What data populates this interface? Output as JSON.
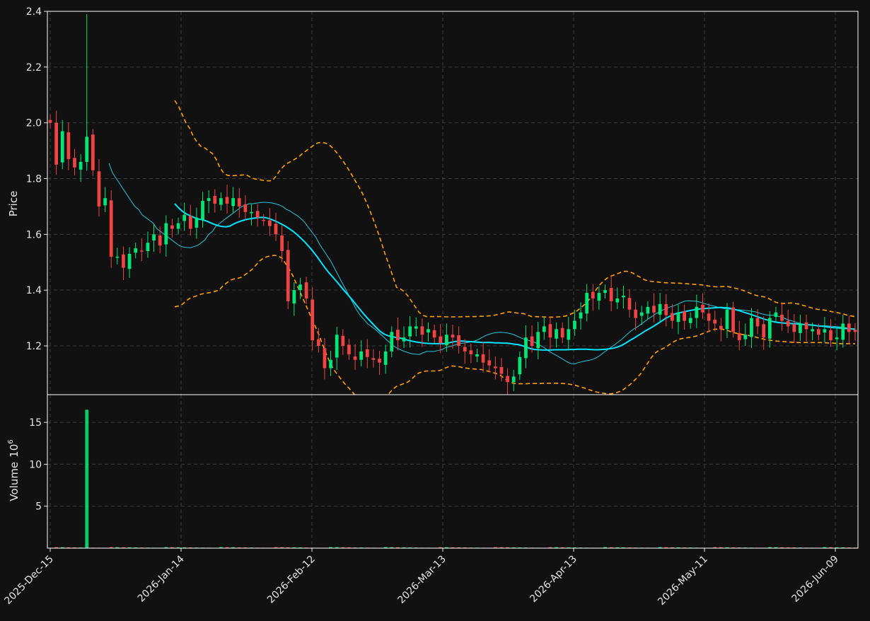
{
  "chart_data": {
    "type": "candlestick",
    "price_axis": {
      "ylabel": "Price",
      "ylim": [
        1.025,
        2.4
      ],
      "ticks": [
        "1.2",
        "1.4",
        "1.6",
        "1.8",
        "2.0",
        "2.2",
        "2.4"
      ]
    },
    "volume_axis": {
      "ylabel": "Volume",
      "exponent": "6",
      "ylim": [
        0,
        18.3
      ],
      "ticks": [
        "5",
        "10",
        "15"
      ]
    },
    "x_axis": {
      "ticks": [
        "2025-Dec-15",
        "2026-Jan-14",
        "2026-Feb-12",
        "2026-Mar-13",
        "2026-Apr-13",
        "2026-May-11",
        "2026-Jun-09"
      ]
    },
    "grid": true,
    "colors": {
      "background": "#111111",
      "up": "#00e676",
      "down": "#ef4444",
      "ma_thin": "#26c6da",
      "ma_thick": "#00e5ff",
      "bands": "#ffa000",
      "grid": "#3a3a3a",
      "axis": "#ffffff"
    },
    "candle_closes": [
      2.0,
      1.85,
      1.97,
      1.87,
      1.84,
      1.86,
      1.95,
      1.83,
      1.7,
      1.73,
      1.52,
      1.52,
      1.48,
      1.53,
      1.55,
      1.54,
      1.57,
      1.6,
      1.56,
      1.64,
      1.62,
      1.64,
      1.67,
      1.62,
      1.66,
      1.72,
      1.73,
      1.71,
      1.73,
      1.71,
      1.73,
      1.7,
      1.68,
      1.68,
      1.66,
      1.65,
      1.63,
      1.6,
      1.54,
      1.36,
      1.4,
      1.42,
      1.37,
      1.22,
      1.2,
      1.12,
      1.15,
      1.24,
      1.2,
      1.17,
      1.15,
      1.18,
      1.16,
      1.15,
      1.14,
      1.18,
      1.25,
      1.22,
      1.23,
      1.27,
      1.27,
      1.24,
      1.26,
      1.23,
      1.21,
      1.24,
      1.23,
      1.2,
      1.18,
      1.17,
      1.17,
      1.14,
      1.13,
      1.12,
      1.1,
      1.07,
      1.09,
      1.16,
      1.23,
      1.2,
      1.25,
      1.27,
      1.23,
      1.26,
      1.23,
      1.26,
      1.29,
      1.32,
      1.39,
      1.37,
      1.39,
      1.4,
      1.36,
      1.37,
      1.38,
      1.33,
      1.3,
      1.32,
      1.34,
      1.32,
      1.35,
      1.31,
      1.29,
      1.32,
      1.29,
      1.3,
      1.34,
      1.32,
      1.29,
      1.28,
      1.26,
      1.33,
      1.25,
      1.22,
      1.24,
      1.3,
      1.27,
      1.23,
      1.3,
      1.32,
      1.29,
      1.27,
      1.25,
      1.28,
      1.26,
      1.26,
      1.24,
      1.26,
      1.22,
      1.23,
      1.28,
      1.25,
      1.25
    ],
    "ma_thin_20": [
      1.855,
      1.82,
      1.8,
      1.78,
      1.76,
      1.74,
      1.72,
      1.7,
      1.69,
      1.67,
      1.66,
      1.65,
      1.64,
      1.62,
      1.61,
      1.6,
      1.59,
      1.58,
      1.57,
      1.56,
      1.555,
      1.553,
      1.552,
      1.556,
      1.56,
      1.57,
      1.58,
      1.6,
      1.61,
      1.63,
      1.64,
      1.65,
      1.66,
      1.67,
      1.68,
      1.69,
      1.7,
      1.705,
      1.71,
      1.71,
      1.712,
      1.714,
      1.715,
      1.714,
      1.713,
      1.71,
      1.706,
      1.7,
      1.69,
      1.684,
      1.675,
      1.667,
      1.656,
      1.643,
      1.625,
      1.607,
      1.59,
      1.565,
      1.545,
      1.525,
      1.505,
      1.48,
      1.455,
      1.43,
      1.405,
      1.38,
      1.355,
      1.33,
      1.31,
      1.295,
      1.28,
      1.27,
      1.26,
      1.248,
      1.236,
      1.224,
      1.212,
      1.2,
      1.192,
      1.186,
      1.18,
      1.176,
      1.172,
      1.17,
      1.169,
      1.175,
      1.18,
      1.18,
      1.18,
      1.183,
      1.186,
      1.193,
      1.197,
      1.2,
      1.205,
      1.209,
      1.21,
      1.212,
      1.214,
      1.217,
      1.223,
      1.23,
      1.237,
      1.242,
      1.246,
      1.248,
      1.249,
      1.248,
      1.246,
      1.243,
      1.238,
      1.232,
      1.226,
      1.222,
      1.218,
      1.214,
      1.208,
      1.2,
      1.192,
      1.182,
      1.174,
      1.167,
      1.159,
      1.151,
      1.143,
      1.137,
      1.135,
      1.14,
      1.143,
      1.146,
      1.148,
      1.152,
      1.158,
      1.166,
      1.177,
      1.186,
      1.196,
      1.205,
      1.215,
      1.226,
      1.238,
      1.25,
      1.26,
      1.268,
      1.277,
      1.287,
      1.297,
      1.305,
      1.315,
      1.322,
      1.329,
      1.335,
      1.34,
      1.344,
      1.35,
      1.356,
      1.361,
      1.362,
      1.361,
      1.36,
      1.357,
      1.353,
      1.349,
      1.345,
      1.342,
      1.338,
      1.335,
      1.333,
      1.332,
      1.331,
      1.33,
      1.329,
      1.328,
      1.326,
      1.324,
      1.322,
      1.318,
      1.314,
      1.311,
      1.31,
      1.31,
      1.307,
      1.303,
      1.298,
      1.293,
      1.289,
      1.285,
      1.281,
      1.277,
      1.275,
      1.274,
      1.273,
      1.272,
      1.272,
      1.272,
      1.271,
      1.27,
      1.269,
      1.268,
      1.266,
      1.264,
      1.262,
      1.26
    ],
    "ma_thick_50": [
      1.71,
      1.695,
      1.682,
      1.673,
      1.666,
      1.66,
      1.655,
      1.652,
      1.648,
      1.642,
      1.636,
      1.631,
      1.628,
      1.627,
      1.63,
      1.638,
      1.644,
      1.649,
      1.653,
      1.656,
      1.658,
      1.66,
      1.661,
      1.66,
      1.656,
      1.65,
      1.644,
      1.637,
      1.629,
      1.62,
      1.61,
      1.598,
      1.585,
      1.571,
      1.555,
      1.538,
      1.52,
      1.5,
      1.48,
      1.462,
      1.446,
      1.43,
      1.413,
      1.396,
      1.38,
      1.363,
      1.345,
      1.328,
      1.311,
      1.295,
      1.28,
      1.265,
      1.251,
      1.242,
      1.236,
      1.233,
      1.23,
      1.228,
      1.224,
      1.22,
      1.217,
      1.214,
      1.212,
      1.21,
      1.209,
      1.208,
      1.208,
      1.208,
      1.208,
      1.21,
      1.213,
      1.216,
      1.217,
      1.217,
      1.216,
      1.215,
      1.214,
      1.213,
      1.212,
      1.212,
      1.212,
      1.211,
      1.211,
      1.21,
      1.21,
      1.208,
      1.206,
      1.204,
      1.2,
      1.195,
      1.19,
      1.187,
      1.186,
      1.185,
      1.185,
      1.185,
      1.186,
      1.186,
      1.186,
      1.186,
      1.187,
      1.187,
      1.188,
      1.188,
      1.188,
      1.187,
      1.186,
      1.186,
      1.187,
      1.188,
      1.19,
      1.192,
      1.196,
      1.202,
      1.21,
      1.219,
      1.227,
      1.236,
      1.245,
      1.254,
      1.262,
      1.27,
      1.279,
      1.288,
      1.298,
      1.305,
      1.312,
      1.317,
      1.32,
      1.323,
      1.326,
      1.329,
      1.331,
      1.333,
      1.334,
      1.335,
      1.336,
      1.337,
      1.338,
      1.337,
      1.336,
      1.333,
      1.329,
      1.325,
      1.32,
      1.316,
      1.311,
      1.306,
      1.301,
      1.296,
      1.292,
      1.288,
      1.285,
      1.283,
      1.282,
      1.281,
      1.28,
      1.279,
      1.278,
      1.277,
      1.276,
      1.275,
      1.273,
      1.271,
      1.27,
      1.268,
      1.266,
      1.265,
      1.264,
      1.263,
      1.262,
      1.261,
      1.26
    ],
    "bands_upper": [
      2.08,
      2.06,
      2.03,
      2.0,
      1.98,
      1.95,
      1.93,
      1.915,
      1.91,
      1.9,
      1.89,
      1.87,
      1.84,
      1.82,
      1.812,
      1.81,
      1.811,
      1.812,
      1.813,
      1.814,
      1.806,
      1.8,
      1.797,
      1.795,
      1.793,
      1.792,
      1.793,
      1.81,
      1.83,
      1.845,
      1.855,
      1.862,
      1.87,
      1.878,
      1.89,
      1.9,
      1.91,
      1.92,
      1.928,
      1.93,
      1.928,
      1.922,
      1.91,
      1.895,
      1.877,
      1.858,
      1.838,
      1.816,
      1.793,
      1.77,
      1.745,
      1.715,
      1.682,
      1.647,
      1.61,
      1.57,
      1.528,
      1.49,
      1.45,
      1.41,
      1.405,
      1.395,
      1.38,
      1.36,
      1.34,
      1.32,
      1.31,
      1.305,
      1.305,
      1.305,
      1.305,
      1.305,
      1.304,
      1.304,
      1.304,
      1.304,
      1.304,
      1.305,
      1.305,
      1.305,
      1.305,
      1.306,
      1.306,
      1.307,
      1.308,
      1.31,
      1.313,
      1.316,
      1.32,
      1.322,
      1.32,
      1.318,
      1.317,
      1.315,
      1.31,
      1.305,
      1.305,
      1.304,
      1.304,
      1.303,
      1.303,
      1.303,
      1.304,
      1.305,
      1.307,
      1.312,
      1.318,
      1.326,
      1.336,
      1.348,
      1.362,
      1.38,
      1.4,
      1.418,
      1.432,
      1.443,
      1.45,
      1.455,
      1.46,
      1.466,
      1.468,
      1.466,
      1.46,
      1.452,
      1.445,
      1.437,
      1.433,
      1.431,
      1.43,
      1.428,
      1.427,
      1.426,
      1.426,
      1.425,
      1.425,
      1.424,
      1.423,
      1.422,
      1.421,
      1.42,
      1.419,
      1.417,
      1.415,
      1.413,
      1.412,
      1.412,
      1.413,
      1.413,
      1.41,
      1.407,
      1.404,
      1.4,
      1.395,
      1.389,
      1.384,
      1.38,
      1.378,
      1.375,
      1.37,
      1.362,
      1.356,
      1.353,
      1.352,
      1.353,
      1.354,
      1.352,
      1.35,
      1.346,
      1.342,
      1.338,
      1.334,
      1.331,
      1.33,
      1.328,
      1.325,
      1.322,
      1.32,
      1.317,
      1.314,
      1.31,
      1.307,
      1.305
    ],
    "bands_lower": [
      1.34,
      1.343,
      1.349,
      1.36,
      1.37,
      1.375,
      1.38,
      1.385,
      1.388,
      1.39,
      1.392,
      1.396,
      1.4,
      1.415,
      1.425,
      1.435,
      1.44,
      1.442,
      1.446,
      1.455,
      1.465,
      1.475,
      1.49,
      1.505,
      1.515,
      1.52,
      1.523,
      1.525,
      1.522,
      1.515,
      1.495,
      1.475,
      1.45,
      1.42,
      1.39,
      1.36,
      1.33,
      1.3,
      1.27,
      1.24,
      1.205,
      1.17,
      1.14,
      1.115,
      1.098,
      1.08,
      1.064,
      1.05,
      1.035,
      1.02,
      1.005,
      0.99,
      0.98,
      0.975,
      0.978,
      0.985,
      0.996,
      1.012,
      1.03,
      1.045,
      1.055,
      1.06,
      1.065,
      1.07,
      1.08,
      1.093,
      1.103,
      1.107,
      1.11,
      1.11,
      1.11,
      1.11,
      1.113,
      1.12,
      1.125,
      1.128,
      1.127,
      1.125,
      1.122,
      1.12,
      1.118,
      1.117,
      1.116,
      1.115,
      1.112,
      1.108,
      1.105,
      1.1,
      1.095,
      1.085,
      1.075,
      1.068,
      1.065,
      1.064,
      1.064,
      1.064,
      1.065,
      1.065,
      1.065,
      1.065,
      1.066,
      1.066,
      1.066,
      1.066,
      1.066,
      1.065,
      1.064,
      1.062,
      1.06,
      1.056,
      1.052,
      1.048,
      1.043,
      1.039,
      1.035,
      1.032,
      1.03,
      1.028,
      1.028,
      1.03,
      1.035,
      1.04,
      1.05,
      1.06,
      1.072,
      1.085,
      1.1,
      1.12,
      1.14,
      1.16,
      1.175,
      1.185,
      1.19,
      1.197,
      1.207,
      1.215,
      1.222,
      1.226,
      1.228,
      1.23,
      1.232,
      1.235,
      1.24,
      1.245,
      1.25,
      1.255,
      1.26,
      1.26,
      1.26,
      1.257,
      1.253,
      1.248,
      1.245,
      1.242,
      1.24,
      1.238,
      1.235,
      1.232,
      1.228,
      1.225,
      1.222,
      1.22,
      1.218,
      1.217,
      1.216,
      1.215,
      1.214,
      1.213,
      1.212,
      1.212,
      1.212,
      1.212,
      1.212,
      1.212,
      1.212,
      1.212,
      1.211,
      1.21,
      1.21,
      1.209,
      1.208,
      1.208,
      1.208,
      1.208,
      1.208
    ],
    "volume_spike": {
      "index": 6,
      "value": 16.5
    }
  }
}
